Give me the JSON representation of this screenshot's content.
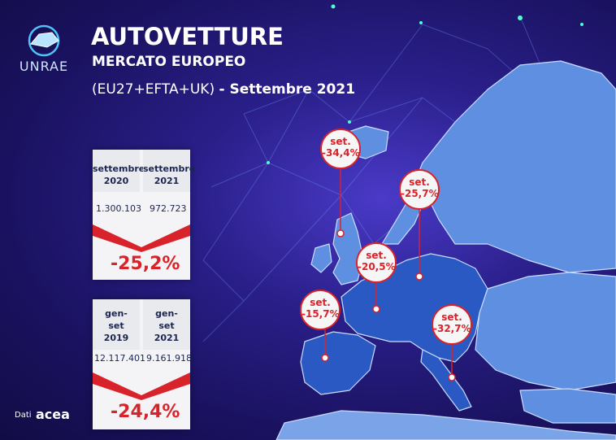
{
  "header": {
    "logo_text": "UNRAE",
    "title": "AUTOVETTURE",
    "subtitle": "MERCATO EUROPEO",
    "region": "(EU27+EFTA+UK)",
    "period": "- Settembre 2021"
  },
  "card_month": {
    "col1_label_line1": "settembre",
    "col1_label_line2": "2020",
    "col2_label_line1": "settembre",
    "col2_label_line2": "2021",
    "col1_value": "1.300.103",
    "col2_value": "972.723",
    "change": "-25,2%"
  },
  "card_ytd": {
    "col1_label_line1": "gen-",
    "col1_label_line2": "set",
    "col1_label_line3": "2019",
    "col2_label_line1": "gen-",
    "col2_label_line2": "set",
    "col2_label_line3": "2021",
    "col1_value": "12.117.401",
    "col2_value": "9.161.918",
    "change": "-24,4%"
  },
  "pins": [
    {
      "label": "set.",
      "value": "-34,4%"
    },
    {
      "label": "set.",
      "value": "-25,7%"
    },
    {
      "label": "set.",
      "value": "-20,5%"
    },
    {
      "label": "set.",
      "value": "-15,7%"
    },
    {
      "label": "set.",
      "value": "-32,7%"
    }
  ],
  "footer": {
    "source_prefix": "Dati",
    "source_name": "acea"
  },
  "colors": {
    "background": "#2a1f8a",
    "accent_red": "#d8232a",
    "card_text": "#1b2550",
    "map_fill": "#5f8fe0",
    "highlight_fill": "#2b59c3"
  }
}
